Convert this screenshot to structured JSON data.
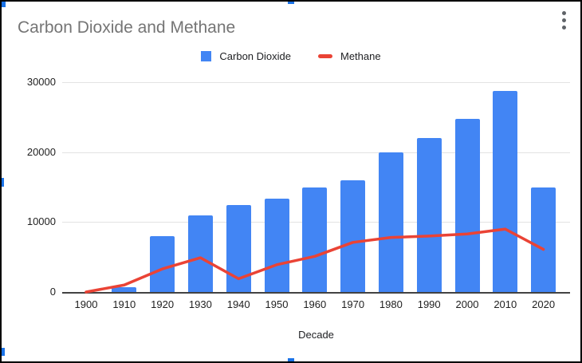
{
  "chart_data": {
    "type": "combo",
    "title": "Carbon Dioxide and Methane",
    "xlabel": "Decade",
    "ylabel": "",
    "categories": [
      "1900",
      "1910",
      "1920",
      "1930",
      "1940",
      "1950",
      "1960",
      "1970",
      "1980",
      "1990",
      "2000",
      "2010",
      "2020"
    ],
    "series": [
      {
        "name": "Carbon Dioxide",
        "type": "bar",
        "color": "#4285F4",
        "values": [
          0,
          700,
          8000,
          11000,
          12400,
          13300,
          15000,
          16000,
          20000,
          22000,
          24800,
          28800,
          15000
        ]
      },
      {
        "name": "Methane",
        "type": "line",
        "color": "#EA4335",
        "values": [
          0,
          1000,
          3300,
          4900,
          1900,
          3900,
          5100,
          7100,
          7800,
          8000,
          8300,
          9000,
          6100
        ]
      }
    ],
    "ylim": [
      0,
      30000
    ],
    "yticks": [
      0,
      10000,
      20000,
      30000
    ],
    "ytick_labels": [
      "0",
      "10000",
      "20000",
      "30000"
    ],
    "grid": true,
    "legend_position": "top"
  },
  "ui": {
    "menu_icon": "kebab-menu-icon",
    "selection_handle_color": "#1A73E8",
    "bar_color": "#4285F4",
    "line_color": "#EA4335",
    "title_color": "#757575",
    "axis_color": "#424242",
    "gridline_color": "#E3E3E3"
  }
}
